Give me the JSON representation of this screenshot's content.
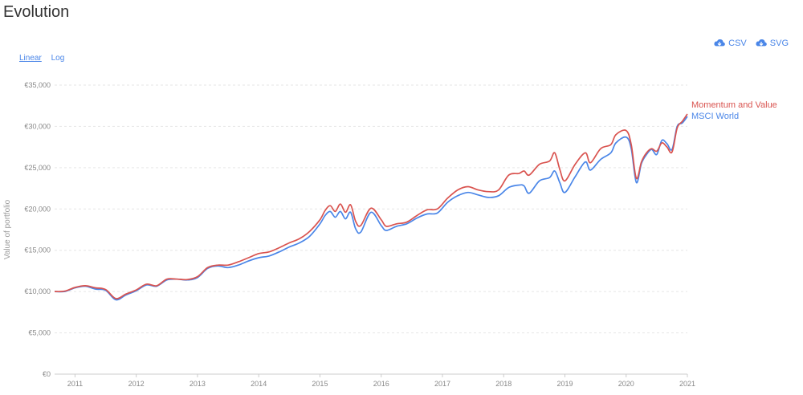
{
  "page": {
    "title": "Evolution",
    "scale_options": [
      "Linear",
      "Log"
    ],
    "selected_scale": "Linear",
    "downloads": [
      {
        "label": "CSV",
        "icon": "cloud-download-icon"
      },
      {
        "label": "SVG",
        "icon": "cloud-download-icon"
      }
    ],
    "accent_color": "#4a86e8"
  },
  "chart_data": {
    "type": "line",
    "title": "",
    "xlabel": "",
    "ylabel": "Value of portfolio",
    "ylim": [
      0,
      35000
    ],
    "xlim": [
      "2010-09",
      "2021-01"
    ],
    "yticks": [
      0,
      5000,
      10000,
      15000,
      20000,
      25000,
      30000,
      35000
    ],
    "ytick_labels": [
      "€0",
      "€5,000",
      "€10,000",
      "€15,000",
      "€20,000",
      "€25,000",
      "€30,000",
      "€35,000"
    ],
    "xticks": [
      "2011-01",
      "2012-01",
      "2013-01",
      "2014-01",
      "2015-01",
      "2016-01",
      "2017-01",
      "2018-01",
      "2019-01",
      "2020-01",
      "2021-01"
    ],
    "xtick_labels": [
      "2011",
      "2012",
      "2013",
      "2014",
      "2015",
      "2016",
      "2017",
      "2018",
      "2019",
      "2020",
      "2021"
    ],
    "grid": "horizontal-dashed",
    "legend": "labels at line ends",
    "series": [
      {
        "name": "Momentum and Value",
        "color": "#d9534f",
        "points": [
          [
            "2010-09",
            10000
          ],
          [
            "2010-11",
            10050
          ],
          [
            "2011-01",
            10500
          ],
          [
            "2011-03",
            10700
          ],
          [
            "2011-05",
            10450
          ],
          [
            "2011-07",
            10250
          ],
          [
            "2011-09",
            9150
          ],
          [
            "2011-11",
            9700
          ],
          [
            "2012-01",
            10200
          ],
          [
            "2012-03",
            10900
          ],
          [
            "2012-05",
            10700
          ],
          [
            "2012-07",
            11500
          ],
          [
            "2012-09",
            11500
          ],
          [
            "2012-11",
            11450
          ],
          [
            "2013-01",
            11800
          ],
          [
            "2013-03",
            12900
          ],
          [
            "2013-05",
            13200
          ],
          [
            "2013-07",
            13200
          ],
          [
            "2013-09",
            13600
          ],
          [
            "2013-11",
            14100
          ],
          [
            "2014-01",
            14600
          ],
          [
            "2014-03",
            14800
          ],
          [
            "2014-05",
            15300
          ],
          [
            "2014-07",
            15900
          ],
          [
            "2014-09",
            16400
          ],
          [
            "2014-11",
            17300
          ],
          [
            "2015-01",
            18700
          ],
          [
            "2015-02",
            19800
          ],
          [
            "2015-03",
            20400
          ],
          [
            "2015-04",
            19700
          ],
          [
            "2015-05",
            20600
          ],
          [
            "2015-06",
            19600
          ],
          [
            "2015-07",
            20500
          ],
          [
            "2015-08",
            18500
          ],
          [
            "2015-09",
            18000
          ],
          [
            "2015-11",
            20100
          ],
          [
            "2016-01",
            18700
          ],
          [
            "2016-02",
            17900
          ],
          [
            "2016-04",
            18200
          ],
          [
            "2016-06",
            18400
          ],
          [
            "2016-08",
            19200
          ],
          [
            "2016-10",
            19900
          ],
          [
            "2016-12",
            20000
          ],
          [
            "2017-02",
            21300
          ],
          [
            "2017-04",
            22300
          ],
          [
            "2017-06",
            22700
          ],
          [
            "2017-08",
            22300
          ],
          [
            "2017-10",
            22100
          ],
          [
            "2017-12",
            22300
          ],
          [
            "2018-02",
            24100
          ],
          [
            "2018-04",
            24300
          ],
          [
            "2018-05",
            24600
          ],
          [
            "2018-06",
            24100
          ],
          [
            "2018-08",
            25400
          ],
          [
            "2018-10",
            25800
          ],
          [
            "2018-11",
            26800
          ],
          [
            "2018-12",
            24800
          ],
          [
            "2019-01",
            23400
          ],
          [
            "2019-03",
            25400
          ],
          [
            "2019-05",
            26800
          ],
          [
            "2019-06",
            25600
          ],
          [
            "2019-08",
            27300
          ],
          [
            "2019-10",
            27800
          ],
          [
            "2019-11",
            29000
          ],
          [
            "2020-01",
            29500
          ],
          [
            "2020-02",
            27800
          ],
          [
            "2020-03",
            23700
          ],
          [
            "2020-04",
            25700
          ],
          [
            "2020-05",
            26800
          ],
          [
            "2020-06",
            27300
          ],
          [
            "2020-07",
            27000
          ],
          [
            "2020-08",
            28000
          ],
          [
            "2020-09",
            27500
          ],
          [
            "2020-10",
            26900
          ],
          [
            "2020-11",
            29800
          ],
          [
            "2020-12",
            30600
          ],
          [
            "2021-01",
            31500
          ]
        ]
      },
      {
        "name": "MSCI World",
        "color": "#4a86e8",
        "points": [
          [
            "2010-09",
            10000
          ],
          [
            "2010-11",
            10000
          ],
          [
            "2011-01",
            10450
          ],
          [
            "2011-03",
            10650
          ],
          [
            "2011-05",
            10300
          ],
          [
            "2011-07",
            10150
          ],
          [
            "2011-09",
            9000
          ],
          [
            "2011-11",
            9600
          ],
          [
            "2012-01",
            10100
          ],
          [
            "2012-03",
            10800
          ],
          [
            "2012-05",
            10650
          ],
          [
            "2012-07",
            11400
          ],
          [
            "2012-09",
            11500
          ],
          [
            "2012-11",
            11400
          ],
          [
            "2013-01",
            11700
          ],
          [
            "2013-03",
            12800
          ],
          [
            "2013-05",
            13100
          ],
          [
            "2013-07",
            12900
          ],
          [
            "2013-09",
            13200
          ],
          [
            "2013-11",
            13700
          ],
          [
            "2014-01",
            14100
          ],
          [
            "2014-03",
            14300
          ],
          [
            "2014-05",
            14800
          ],
          [
            "2014-07",
            15400
          ],
          [
            "2014-09",
            15900
          ],
          [
            "2014-11",
            16700
          ],
          [
            "2015-01",
            18200
          ],
          [
            "2015-02",
            19200
          ],
          [
            "2015-03",
            19700
          ],
          [
            "2015-04",
            19000
          ],
          [
            "2015-05",
            19700
          ],
          [
            "2015-06",
            18800
          ],
          [
            "2015-07",
            19600
          ],
          [
            "2015-08",
            17600
          ],
          [
            "2015-09",
            17200
          ],
          [
            "2015-11",
            19600
          ],
          [
            "2016-01",
            18000
          ],
          [
            "2016-02",
            17400
          ],
          [
            "2016-04",
            17900
          ],
          [
            "2016-06",
            18200
          ],
          [
            "2016-08",
            18900
          ],
          [
            "2016-10",
            19400
          ],
          [
            "2016-12",
            19500
          ],
          [
            "2017-02",
            20800
          ],
          [
            "2017-04",
            21600
          ],
          [
            "2017-06",
            22000
          ],
          [
            "2017-08",
            21700
          ],
          [
            "2017-10",
            21400
          ],
          [
            "2017-12",
            21600
          ],
          [
            "2018-02",
            22600
          ],
          [
            "2018-04",
            22900
          ],
          [
            "2018-05",
            22800
          ],
          [
            "2018-06",
            21900
          ],
          [
            "2018-08",
            23400
          ],
          [
            "2018-10",
            23800
          ],
          [
            "2018-11",
            24600
          ],
          [
            "2018-12",
            23200
          ],
          [
            "2019-01",
            22000
          ],
          [
            "2019-03",
            23900
          ],
          [
            "2019-05",
            25700
          ],
          [
            "2019-06",
            24700
          ],
          [
            "2019-08",
            26000
          ],
          [
            "2019-10",
            26800
          ],
          [
            "2019-11",
            28000
          ],
          [
            "2020-01",
            28700
          ],
          [
            "2020-02",
            27300
          ],
          [
            "2020-03",
            23200
          ],
          [
            "2020-04",
            25500
          ],
          [
            "2020-05",
            26600
          ],
          [
            "2020-06",
            27200
          ],
          [
            "2020-07",
            26600
          ],
          [
            "2020-08",
            28300
          ],
          [
            "2020-09",
            27900
          ],
          [
            "2020-10",
            27200
          ],
          [
            "2020-11",
            30000
          ],
          [
            "2020-12",
            30400
          ],
          [
            "2021-01",
            31200
          ]
        ]
      }
    ]
  }
}
